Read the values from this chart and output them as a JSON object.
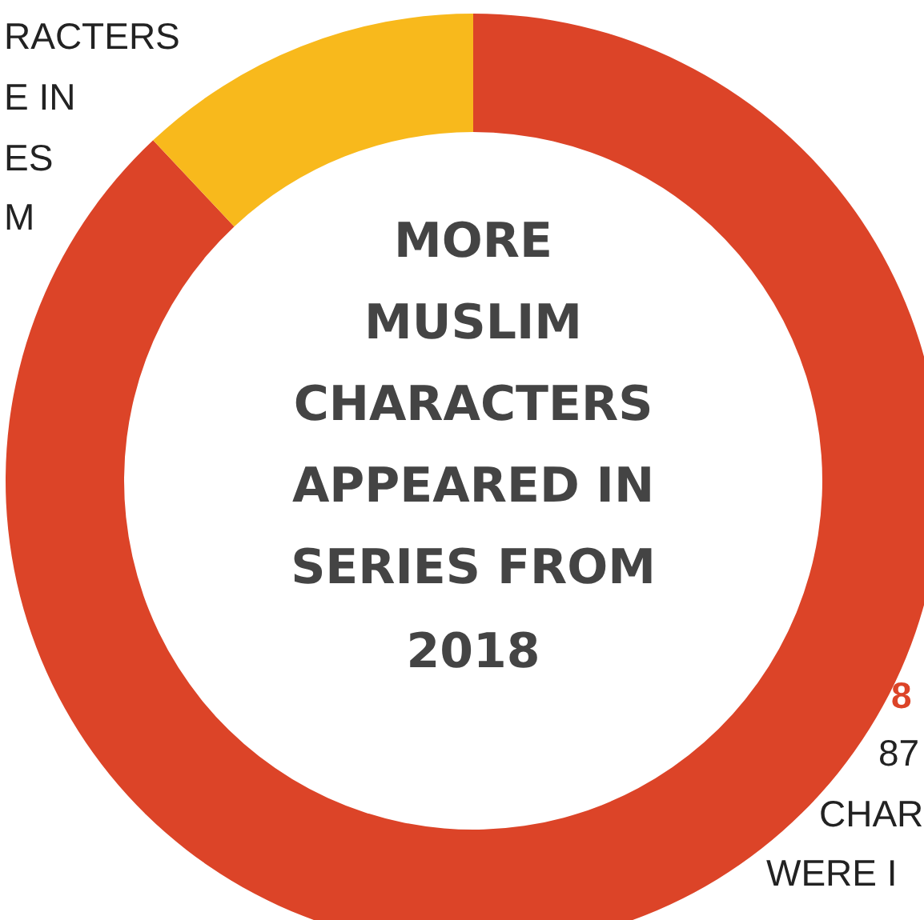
{
  "chart_data": {
    "type": "donut",
    "title": "MORE\nMUSLIM\nCHARACTERS\nAPPEARED IN\nSERIES FROM\n2018",
    "categories": [
      null,
      null
    ],
    "values": [
      88,
      12
    ],
    "colors": [
      "#dc4428",
      "#f8b91c"
    ],
    "annotations": [
      "RACTERS",
      "E IN",
      "ES",
      "M",
      "8",
      "87",
      "CHAR",
      "WERE I"
    ]
  }
}
